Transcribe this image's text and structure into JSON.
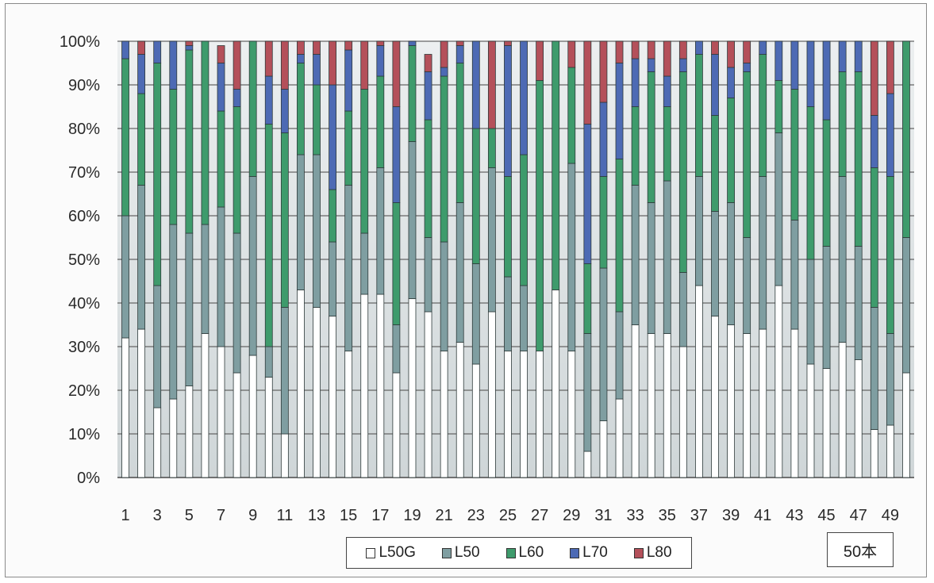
{
  "colors": {
    "plot_top": "#eceff0",
    "plot_bottom": "#cfd6d8",
    "gridline": "#666666",
    "axis": "#555555"
  },
  "legend": {
    "items": [
      {
        "label": "L50G",
        "color": "#ffffff"
      },
      {
        "label": "L50",
        "color": "#7f9ea1"
      },
      {
        "label": "L60",
        "color": "#3e9b6c"
      },
      {
        "label": "L70",
        "color": "#4d6ab4"
      },
      {
        "label": "L80",
        "color": "#b4505a"
      }
    ]
  },
  "note": "50本",
  "chart_data": {
    "type": "bar",
    "stacked": true,
    "percent": true,
    "ylim": [
      0,
      100
    ],
    "grid": true,
    "legend_position": "bottom",
    "y_ticks": [
      "0%",
      "10%",
      "20%",
      "30%",
      "40%",
      "50%",
      "60%",
      "70%",
      "80%",
      "90%",
      "100%"
    ],
    "x_tick_labels": [
      "1",
      "3",
      "5",
      "7",
      "9",
      "11",
      "13",
      "15",
      "17",
      "19",
      "21",
      "23",
      "25",
      "27",
      "29",
      "31",
      "33",
      "35",
      "37",
      "39",
      "41",
      "43",
      "45",
      "47",
      "49"
    ],
    "categories": [
      1,
      2,
      3,
      4,
      5,
      6,
      7,
      8,
      9,
      10,
      11,
      12,
      13,
      14,
      15,
      16,
      17,
      18,
      19,
      20,
      21,
      22,
      23,
      24,
      25,
      26,
      27,
      28,
      29,
      30,
      31,
      32,
      33,
      34,
      35,
      36,
      37,
      38,
      39,
      40,
      41,
      42,
      43,
      44,
      45,
      46,
      47,
      48,
      49,
      50
    ],
    "series": [
      {
        "name": "L50G",
        "color": "#ffffff",
        "values": [
          32,
          34,
          16,
          18,
          21,
          33,
          30,
          24,
          28,
          23,
          10,
          43,
          39,
          37,
          29,
          42,
          42,
          24,
          41,
          38,
          29,
          31,
          26,
          38,
          29,
          29,
          29,
          43,
          29,
          6,
          13,
          18,
          35,
          33,
          33,
          30,
          44,
          37,
          35,
          33,
          34,
          44,
          34,
          26,
          25,
          31,
          27,
          11,
          12,
          24
        ]
      },
      {
        "name": "L50",
        "color": "#7f9ea1",
        "values": [
          28,
          33,
          28,
          40,
          35,
          25,
          32,
          32,
          41,
          7,
          29,
          31,
          35,
          17,
          38,
          14,
          29,
          11,
          36,
          17,
          25,
          32,
          23,
          33,
          17,
          15,
          0,
          0,
          43,
          27,
          35,
          20,
          32,
          30,
          35,
          17,
          25,
          24,
          28,
          22,
          35,
          35,
          25,
          24,
          28,
          38,
          26,
          28,
          21,
          31
        ]
      },
      {
        "name": "L60",
        "color": "#3e9b6c",
        "values": [
          36,
          21,
          51,
          31,
          42,
          42,
          22,
          29,
          31,
          51,
          40,
          21,
          16,
          12,
          17,
          33,
          21,
          28,
          22,
          27,
          38,
          32,
          31,
          9,
          23,
          30,
          62,
          57,
          22,
          16,
          21,
          35,
          18,
          30,
          17,
          46,
          28,
          22,
          24,
          38,
          28,
          12,
          30,
          35,
          29,
          24,
          40,
          32,
          36,
          45
        ]
      },
      {
        "name": "L70",
        "color": "#4d6ab4",
        "values": [
          4,
          9,
          5,
          11,
          1,
          0,
          11,
          4,
          0,
          11,
          10,
          2,
          7,
          24,
          14,
          0,
          7,
          22,
          1,
          11,
          2,
          4,
          20,
          0,
          30,
          26,
          0,
          0,
          0,
          32,
          17,
          22,
          11,
          3,
          7,
          3,
          3,
          14,
          7,
          2,
          3,
          9,
          11,
          15,
          18,
          7,
          7,
          12,
          19,
          0
        ]
      },
      {
        "name": "L80",
        "color": "#b4505a",
        "values": [
          0,
          3,
          0,
          0,
          1,
          0,
          4,
          11,
          0,
          8,
          11,
          3,
          3,
          10,
          2,
          11,
          1,
          15,
          0,
          4,
          6,
          1,
          0,
          20,
          1,
          0,
          9,
          0,
          6,
          19,
          14,
          5,
          4,
          4,
          8,
          4,
          0,
          3,
          6,
          5,
          0,
          0,
          0,
          0,
          0,
          0,
          0,
          17,
          12,
          0
        ]
      }
    ]
  }
}
